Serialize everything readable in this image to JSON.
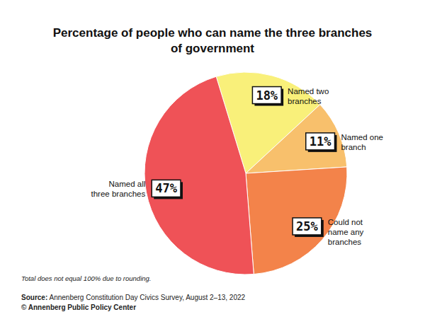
{
  "chart_data": {
    "type": "pie",
    "title": "Percentage of people who can name the three branches of government",
    "categories": [
      "Named two branches",
      "Named one branch",
      "Could not name any branches",
      "Named all three branches"
    ],
    "values": [
      18,
      11,
      25,
      47
    ],
    "value_labels": [
      "18%",
      "11%",
      "25%",
      "47%"
    ],
    "colors": [
      "#f9f07a",
      "#f8c06c",
      "#f3834a",
      "#ef5257"
    ],
    "data_labels": true,
    "note": "Total does not equal 100% due to rounding.",
    "source": "Source: Annenberg Constitution Day Civics Survey, August 2–13, 2022",
    "credit": "© Annenberg Public Policy Center"
  }
}
